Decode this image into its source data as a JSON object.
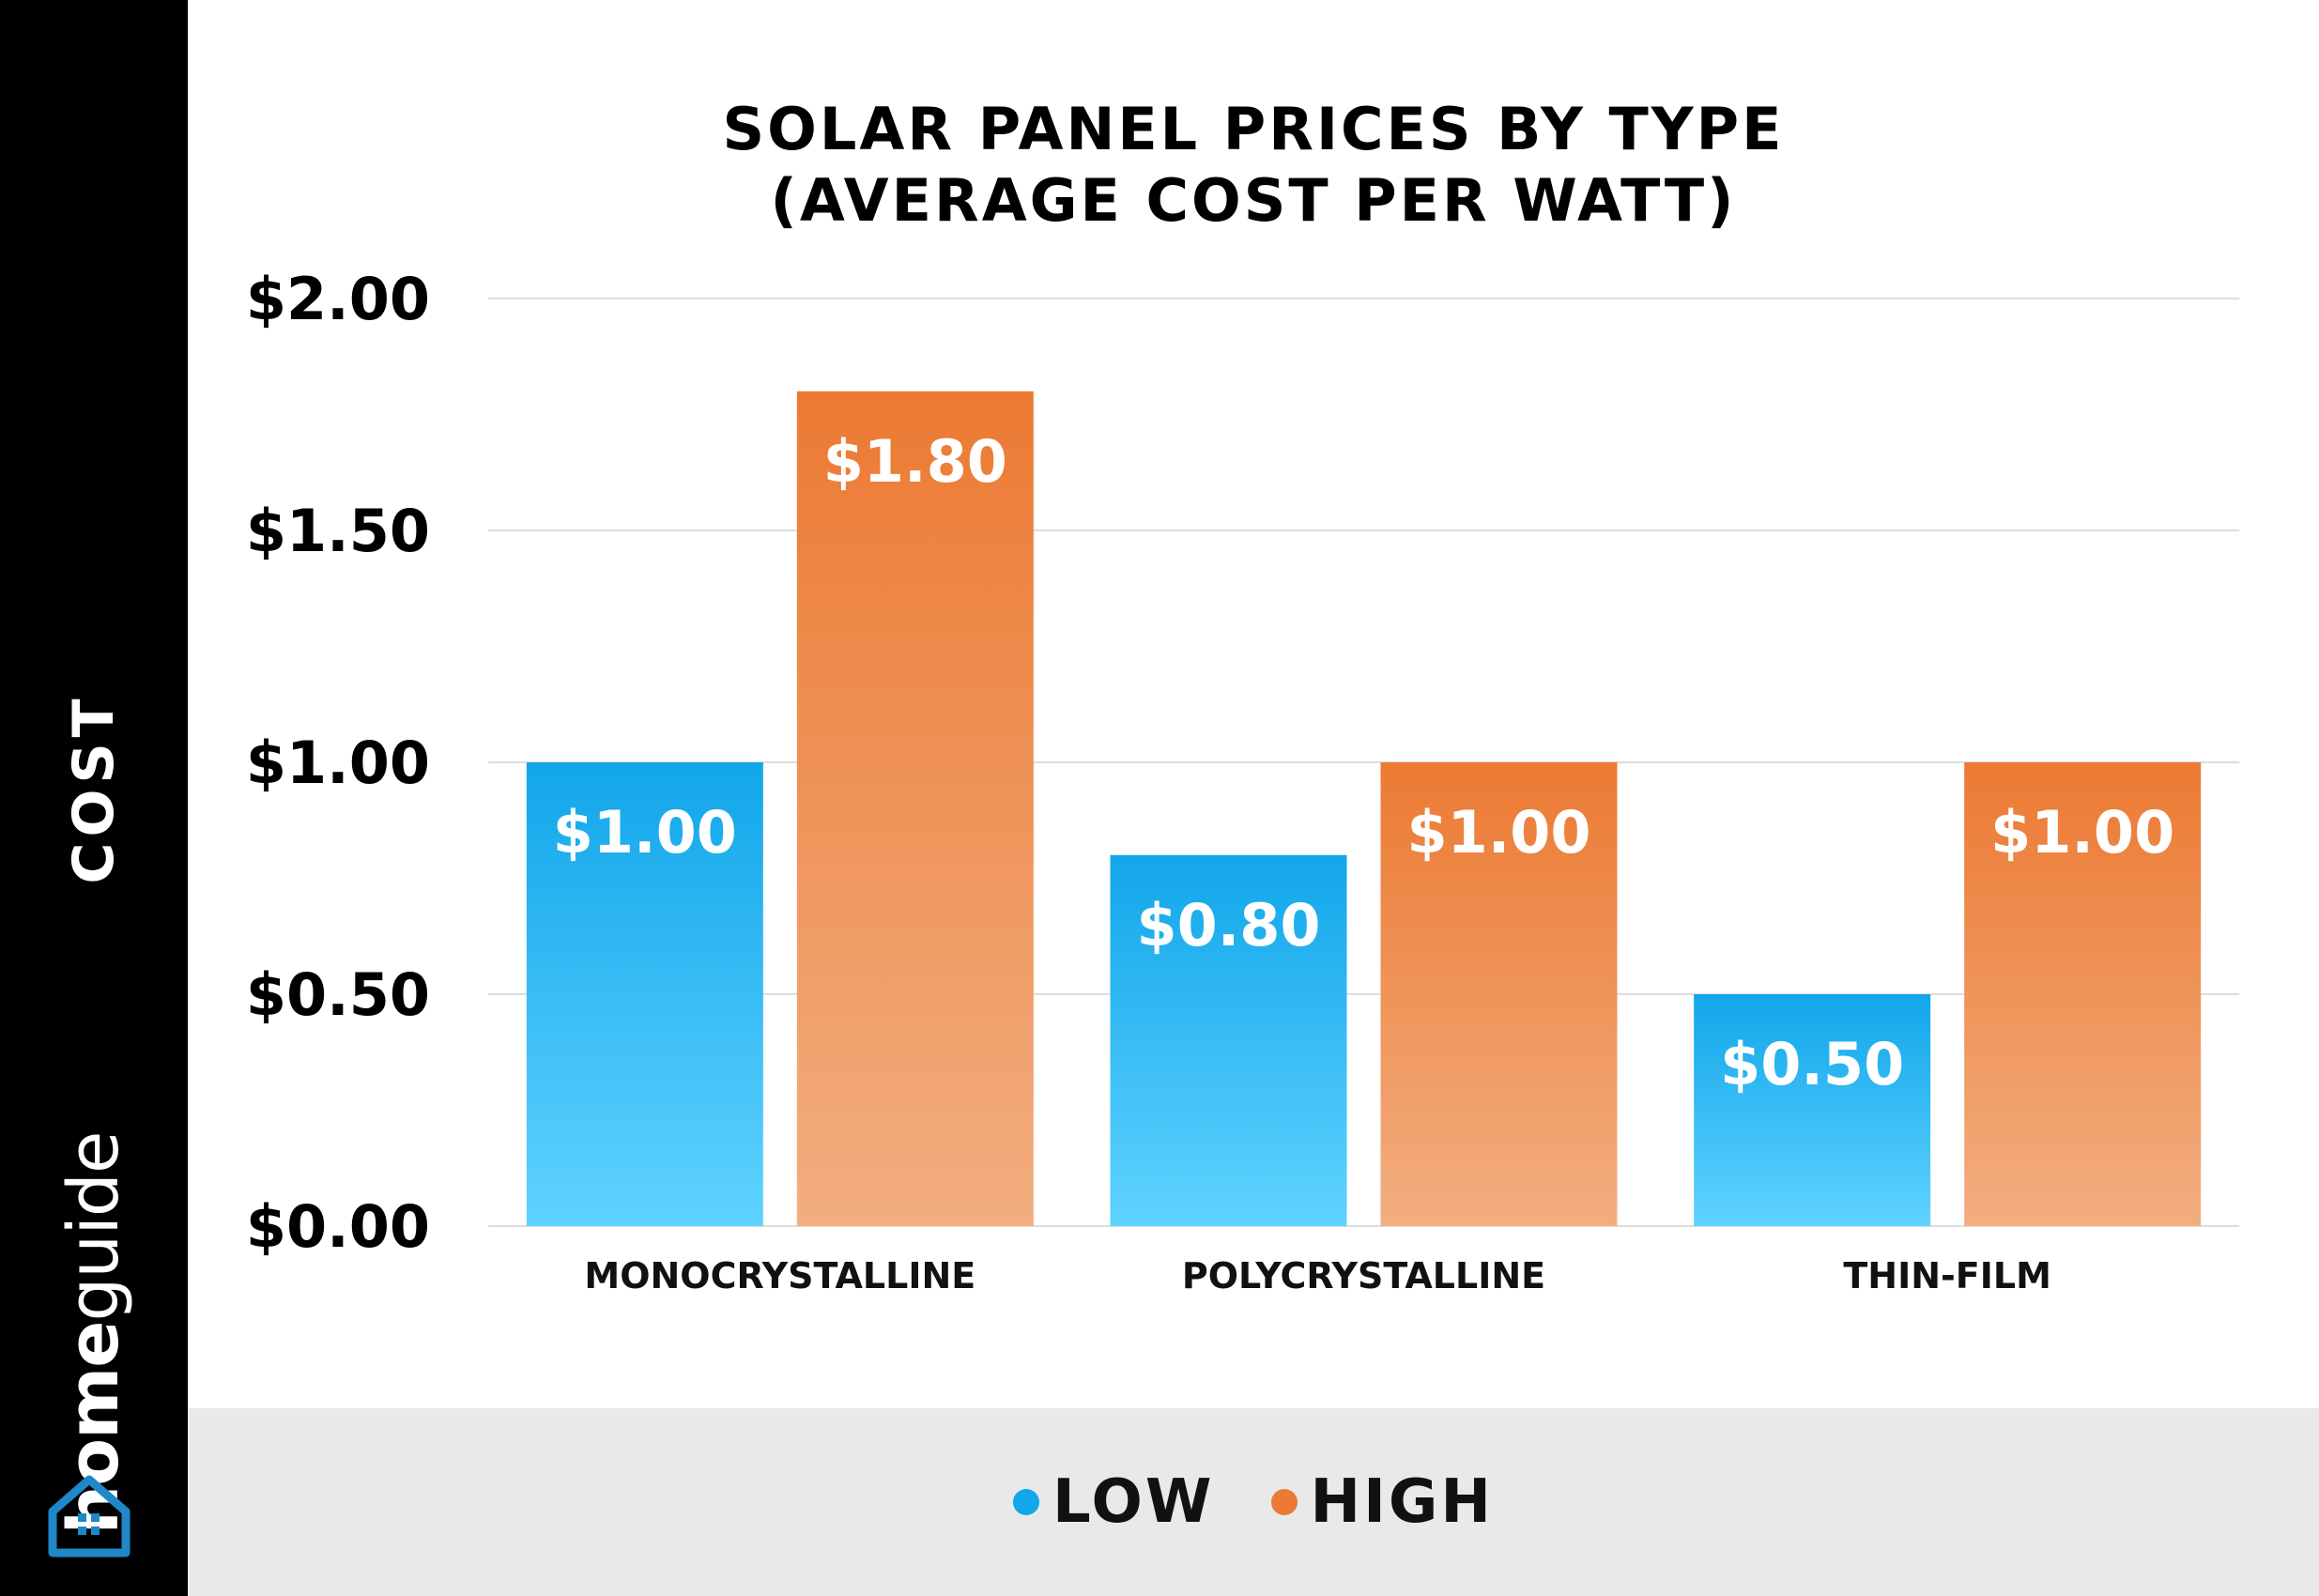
{
  "side_label": "COST",
  "brand": {
    "part1": "home",
    "part2": "guide"
  },
  "colors": {
    "low": "#12a6ea",
    "high": "#ec7a33",
    "low_light": "#5fd3ff",
    "high_light": "#f2ae80",
    "grid": "#dddddd"
  },
  "chart_data": {
    "type": "bar",
    "title_lines": [
      "SOLAR PANEL PRICES BY TYPE",
      "(AVERAGE COST PER WATT)"
    ],
    "ylabel": "COST",
    "xlabel": "",
    "categories": [
      "MONOCRYSTALLINE",
      "POLYCRYSTALLINE",
      "THIN-FILM"
    ],
    "series": [
      {
        "name": "LOW",
        "values": [
          1.0,
          0.8,
          0.5
        ],
        "labels": [
          "$1.00",
          "$0.80",
          "$0.50"
        ]
      },
      {
        "name": "HIGH",
        "values": [
          1.8,
          1.0,
          1.0
        ],
        "labels": [
          "$1.80",
          "$1.00",
          "$1.00"
        ]
      }
    ],
    "ylim": [
      0,
      2.0
    ],
    "yticks": [
      0,
      0.5,
      1.0,
      1.5,
      2.0
    ],
    "ytick_labels": [
      "$0.00",
      "$0.50",
      "$1.00",
      "$1.50",
      "$2.00"
    ],
    "grid": true,
    "legend_position": "bottom-center"
  }
}
